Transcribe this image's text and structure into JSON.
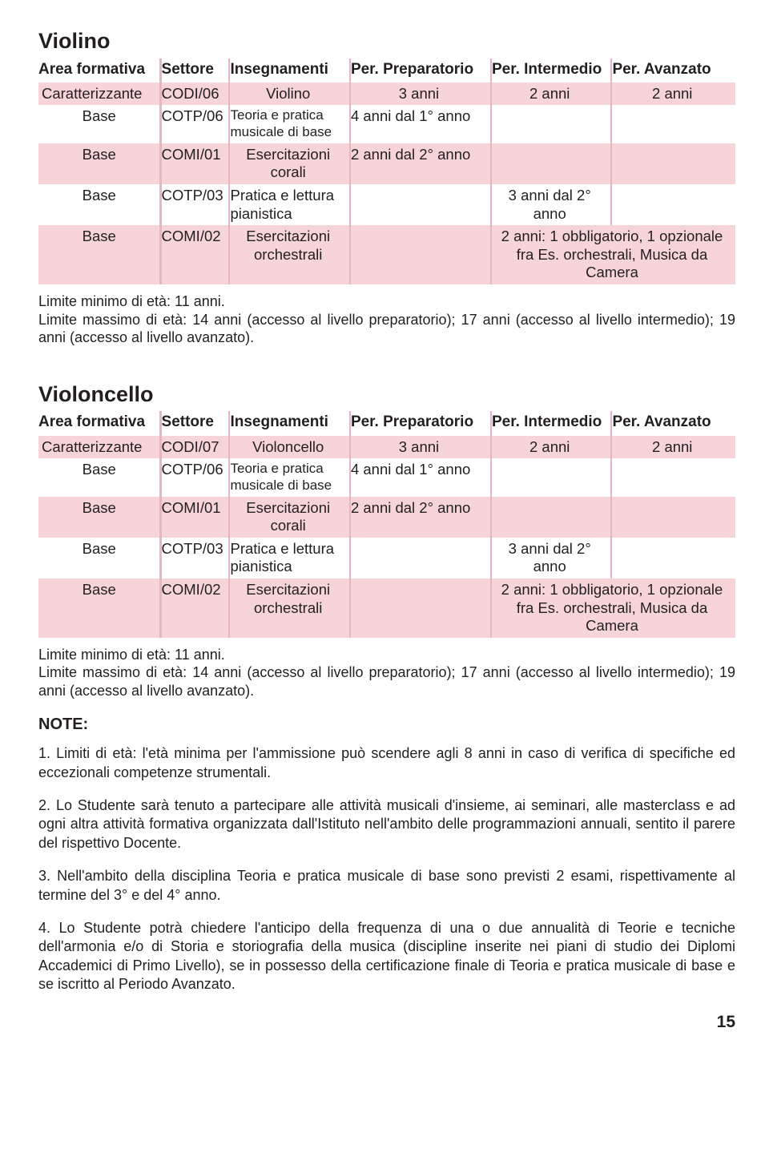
{
  "colors": {
    "row_pink": "#f6d4d8",
    "separator": "#e8b7be",
    "text": "#231f20",
    "background": "#ffffff"
  },
  "headers": {
    "area": "Area formativa",
    "settore": "Settore",
    "inseg": "Insegnamenti",
    "prep": "Per. Preparatorio",
    "inter": "Per. Intermedio",
    "avan": "Per. Avanzato"
  },
  "violino": {
    "title": "Violino",
    "rows": [
      {
        "area": "Caratterizzante",
        "sett": "CODI/06",
        "inseg": "Violino",
        "prep": "3 anni",
        "inter": "2 anni",
        "avan": "2 anni"
      },
      {
        "area": "Base",
        "sett": "COTP/06",
        "inseg": "Teoria e pratica musicale di base",
        "prep": "4 anni  dal 1° anno",
        "inter": "",
        "avan": ""
      },
      {
        "area": "Base",
        "sett": "COMI/01",
        "inseg": "Esercitazioni corali",
        "prep": "2 anni  dal 2° anno",
        "inter": "",
        "avan": ""
      },
      {
        "area": "Base",
        "sett": "COTP/03",
        "inseg": "Pratica e lettura pianistica",
        "prep": "",
        "inter": "3 anni  dal 2° anno",
        "avan": ""
      },
      {
        "area": "Base",
        "sett": "COMI/02",
        "inseg": "Esercitazioni orchestrali",
        "prep": "",
        "inter": "",
        "avan": "2 anni: 1 obbligatorio, 1 opzionale fra Es. orchestrali, Musica da Camera"
      }
    ],
    "note1": "Limite minimo di età: 11 anni.",
    "note2": "Limite massimo di età: 14 anni (accesso al livello preparatorio); 17 anni (accesso al livello intermedio); 19 anni (accesso al livello avanzato)."
  },
  "violoncello": {
    "title": "Violoncello",
    "rows": [
      {
        "area": "Caratterizzante",
        "sett": "CODI/07",
        "inseg": "Violoncello",
        "prep": "3 anni",
        "inter": "2 anni",
        "avan": "2 anni"
      },
      {
        "area": "Base",
        "sett": "COTP/06",
        "inseg": "Teoria e pratica musicale di base",
        "prep": "4 anni  dal 1° anno",
        "inter": "",
        "avan": ""
      },
      {
        "area": "Base",
        "sett": "COMI/01",
        "inseg": "Esercitazioni corali",
        "prep": "2 anni  dal 2° anno",
        "inter": "",
        "avan": ""
      },
      {
        "area": "Base",
        "sett": "COTP/03",
        "inseg": "Pratica e lettura pianistica",
        "prep": "",
        "inter": "3 anni  dal 2° anno",
        "avan": ""
      },
      {
        "area": "Base",
        "sett": "COMI/02",
        "inseg": "Esercitazioni orchestrali",
        "prep": "",
        "inter": "",
        "avan": "2 anni: 1 obbligatorio, 1 opzionale fra Es. orchestrali, Musica da Camera"
      }
    ],
    "note1": "Limite minimo di età: 11 anni.",
    "note2": "Limite massimo di età: 14 anni (accesso al livello preparatorio); 17 anni (accesso al livello intermedio); 19 anni (accesso al livello avanzato)."
  },
  "note_head": "NOTE:",
  "notes": [
    "1. Limiti di età: l'età minima per l'ammissione può scendere agli 8 anni in caso di verifica di specifiche ed eccezionali competenze strumentali.",
    "2. Lo Studente sarà tenuto a partecipare alle attività musicali d'insieme, ai seminari, alle masterclass e ad ogni altra attività formativa organizzata dall'Istituto nell'ambito delle programmazioni annuali, sentito il parere del rispettivo Docente.",
    "3. Nell'ambito della disciplina Teoria e pratica musicale di base sono previsti 2 esami, rispettivamente al termine del 3° e del 4° anno.",
    "4. Lo Studente potrà chiedere l'anticipo della frequenza di una o due annualità di Teorie e tecniche dell'armonia e/o di Storia e storiografia della musica (discipline inserite nei piani di studio dei Diplomi Accademici di Primo Livello), se in possesso della certificazione finale di Teoria e pratica musicale di base e se iscritto al Periodo Avanzato."
  ],
  "page_number": "15"
}
